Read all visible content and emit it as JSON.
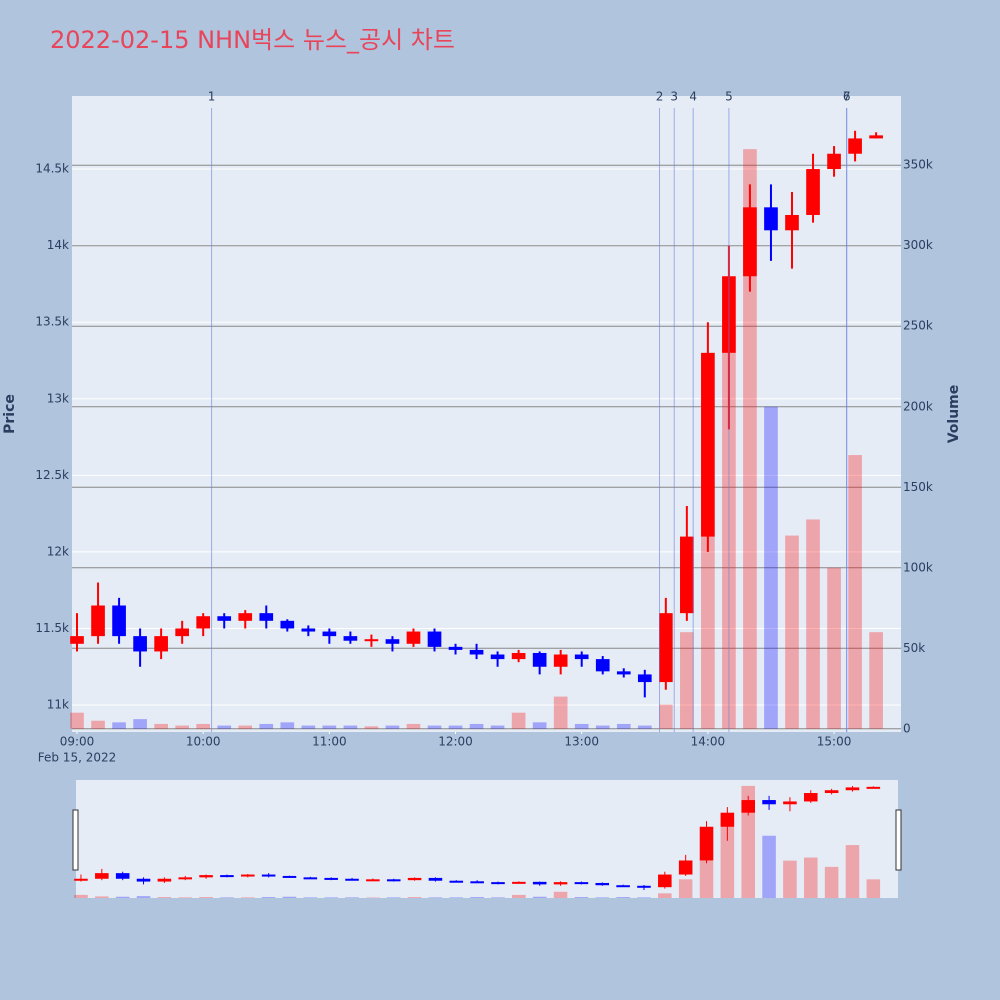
{
  "chart_data": {
    "type": "candlestick",
    "title": "2022-02-15 NHN벅스 뉴스_공시 차트",
    "y_label": "Price",
    "y2_label": "Volume",
    "x_date_label": "Feb 15, 2022",
    "increasing_color": "#ff0000",
    "decreasing_color": "#0000ff",
    "x": [
      "09:00",
      "09:10",
      "09:20",
      "09:30",
      "09:40",
      "09:50",
      "10:00",
      "10:10",
      "10:20",
      "10:30",
      "10:40",
      "10:50",
      "11:00",
      "11:10",
      "11:20",
      "11:30",
      "11:40",
      "11:50",
      "12:00",
      "12:10",
      "12:20",
      "12:30",
      "12:40",
      "12:50",
      "13:00",
      "13:10",
      "13:20",
      "13:30",
      "13:40",
      "13:50",
      "14:00",
      "14:10",
      "14:20",
      "14:30",
      "14:40",
      "14:50",
      "15:00",
      "15:10",
      "15:20"
    ],
    "open": [
      11400,
      11450,
      11650,
      11450,
      11350,
      11450,
      11500,
      11580,
      11550,
      11600,
      11550,
      11500,
      11480,
      11450,
      11420,
      11430,
      11400,
      11480,
      11380,
      11360,
      11330,
      11300,
      11340,
      11250,
      11330,
      11300,
      11220,
      11200,
      11150,
      11600,
      12100,
      13300,
      13800,
      14250,
      14100,
      14200,
      14500,
      14600,
      14700
    ],
    "high": [
      11600,
      11800,
      11700,
      11500,
      11500,
      11550,
      11600,
      11600,
      11620,
      11650,
      11560,
      11520,
      11500,
      11480,
      11460,
      11450,
      11500,
      11500,
      11400,
      11400,
      11350,
      11360,
      11350,
      11360,
      11350,
      11320,
      11240,
      11230,
      11700,
      12300,
      13500,
      14000,
      14400,
      14400,
      14350,
      14600,
      14650,
      14750,
      14740
    ],
    "low": [
      11350,
      11400,
      11400,
      11250,
      11300,
      11400,
      11450,
      11500,
      11500,
      11500,
      11480,
      11450,
      11400,
      11400,
      11380,
      11350,
      11380,
      11350,
      11330,
      11300,
      11250,
      11280,
      11200,
      11200,
      11250,
      11200,
      11180,
      11050,
      11100,
      11550,
      12000,
      12800,
      13700,
      13900,
      13850,
      14150,
      14450,
      14550,
      14700
    ],
    "close": [
      11450,
      11650,
      11450,
      11350,
      11450,
      11500,
      11580,
      11550,
      11600,
      11550,
      11500,
      11480,
      11450,
      11420,
      11430,
      11400,
      11480,
      11380,
      11360,
      11330,
      11300,
      11340,
      11250,
      11330,
      11300,
      11220,
      11200,
      11150,
      11600,
      12100,
      13300,
      13800,
      14250,
      14100,
      14200,
      14500,
      14600,
      14700,
      14720
    ],
    "volume": [
      10000,
      5000,
      4000,
      6000,
      3000,
      2000,
      3000,
      2000,
      2000,
      3000,
      4000,
      2000,
      2000,
      2000,
      1500,
      2000,
      3000,
      2000,
      2000,
      3000,
      2000,
      10000,
      4000,
      20000,
      3000,
      2000,
      3000,
      2000,
      15000,
      60000,
      120000,
      250000,
      360000,
      200000,
      120000,
      130000,
      100000,
      170000,
      60000
    ],
    "xlim": [
      "08:57:37",
      "15:31:50"
    ],
    "xticks": [
      "09:00",
      "10:00",
      "11:00",
      "12:00",
      "13:00",
      "14:00",
      "15:00"
    ],
    "ylim": [
      10824,
      14977
    ],
    "yticks": [
      {
        "value": 11000,
        "label": "11k"
      },
      {
        "value": 11500,
        "label": "11.5k"
      },
      {
        "value": 12000,
        "label": "12k"
      },
      {
        "value": 12500,
        "label": "12.5k"
      },
      {
        "value": 13000,
        "label": "13k"
      },
      {
        "value": 13500,
        "label": "13.5k"
      },
      {
        "value": 14000,
        "label": "14k"
      },
      {
        "value": 14500,
        "label": "14.5k"
      }
    ],
    "y2lim": [
      -2000,
      393000
    ],
    "y2ticks": [
      0,
      {
        "value": 50000,
        "label": "50k"
      },
      {
        "value": 100000,
        "label": "100k"
      },
      {
        "value": 150000,
        "label": "150k"
      },
      {
        "value": 200000,
        "label": "200k"
      },
      {
        "value": 250000,
        "label": "250k"
      },
      {
        "value": 300000,
        "label": "300k"
      },
      {
        "value": 350000,
        "label": "350k"
      }
    ],
    "events": [
      {
        "label": "1",
        "x": "10:04"
      },
      {
        "label": "2",
        "x": "13:37"
      },
      {
        "label": "3",
        "x": "13:44"
      },
      {
        "label": "4",
        "x": "13:53"
      },
      {
        "label": "5",
        "x": "14:10"
      },
      {
        "label": "6",
        "x": "15:06"
      },
      {
        "label": "7",
        "x": "15:06"
      }
    ]
  }
}
